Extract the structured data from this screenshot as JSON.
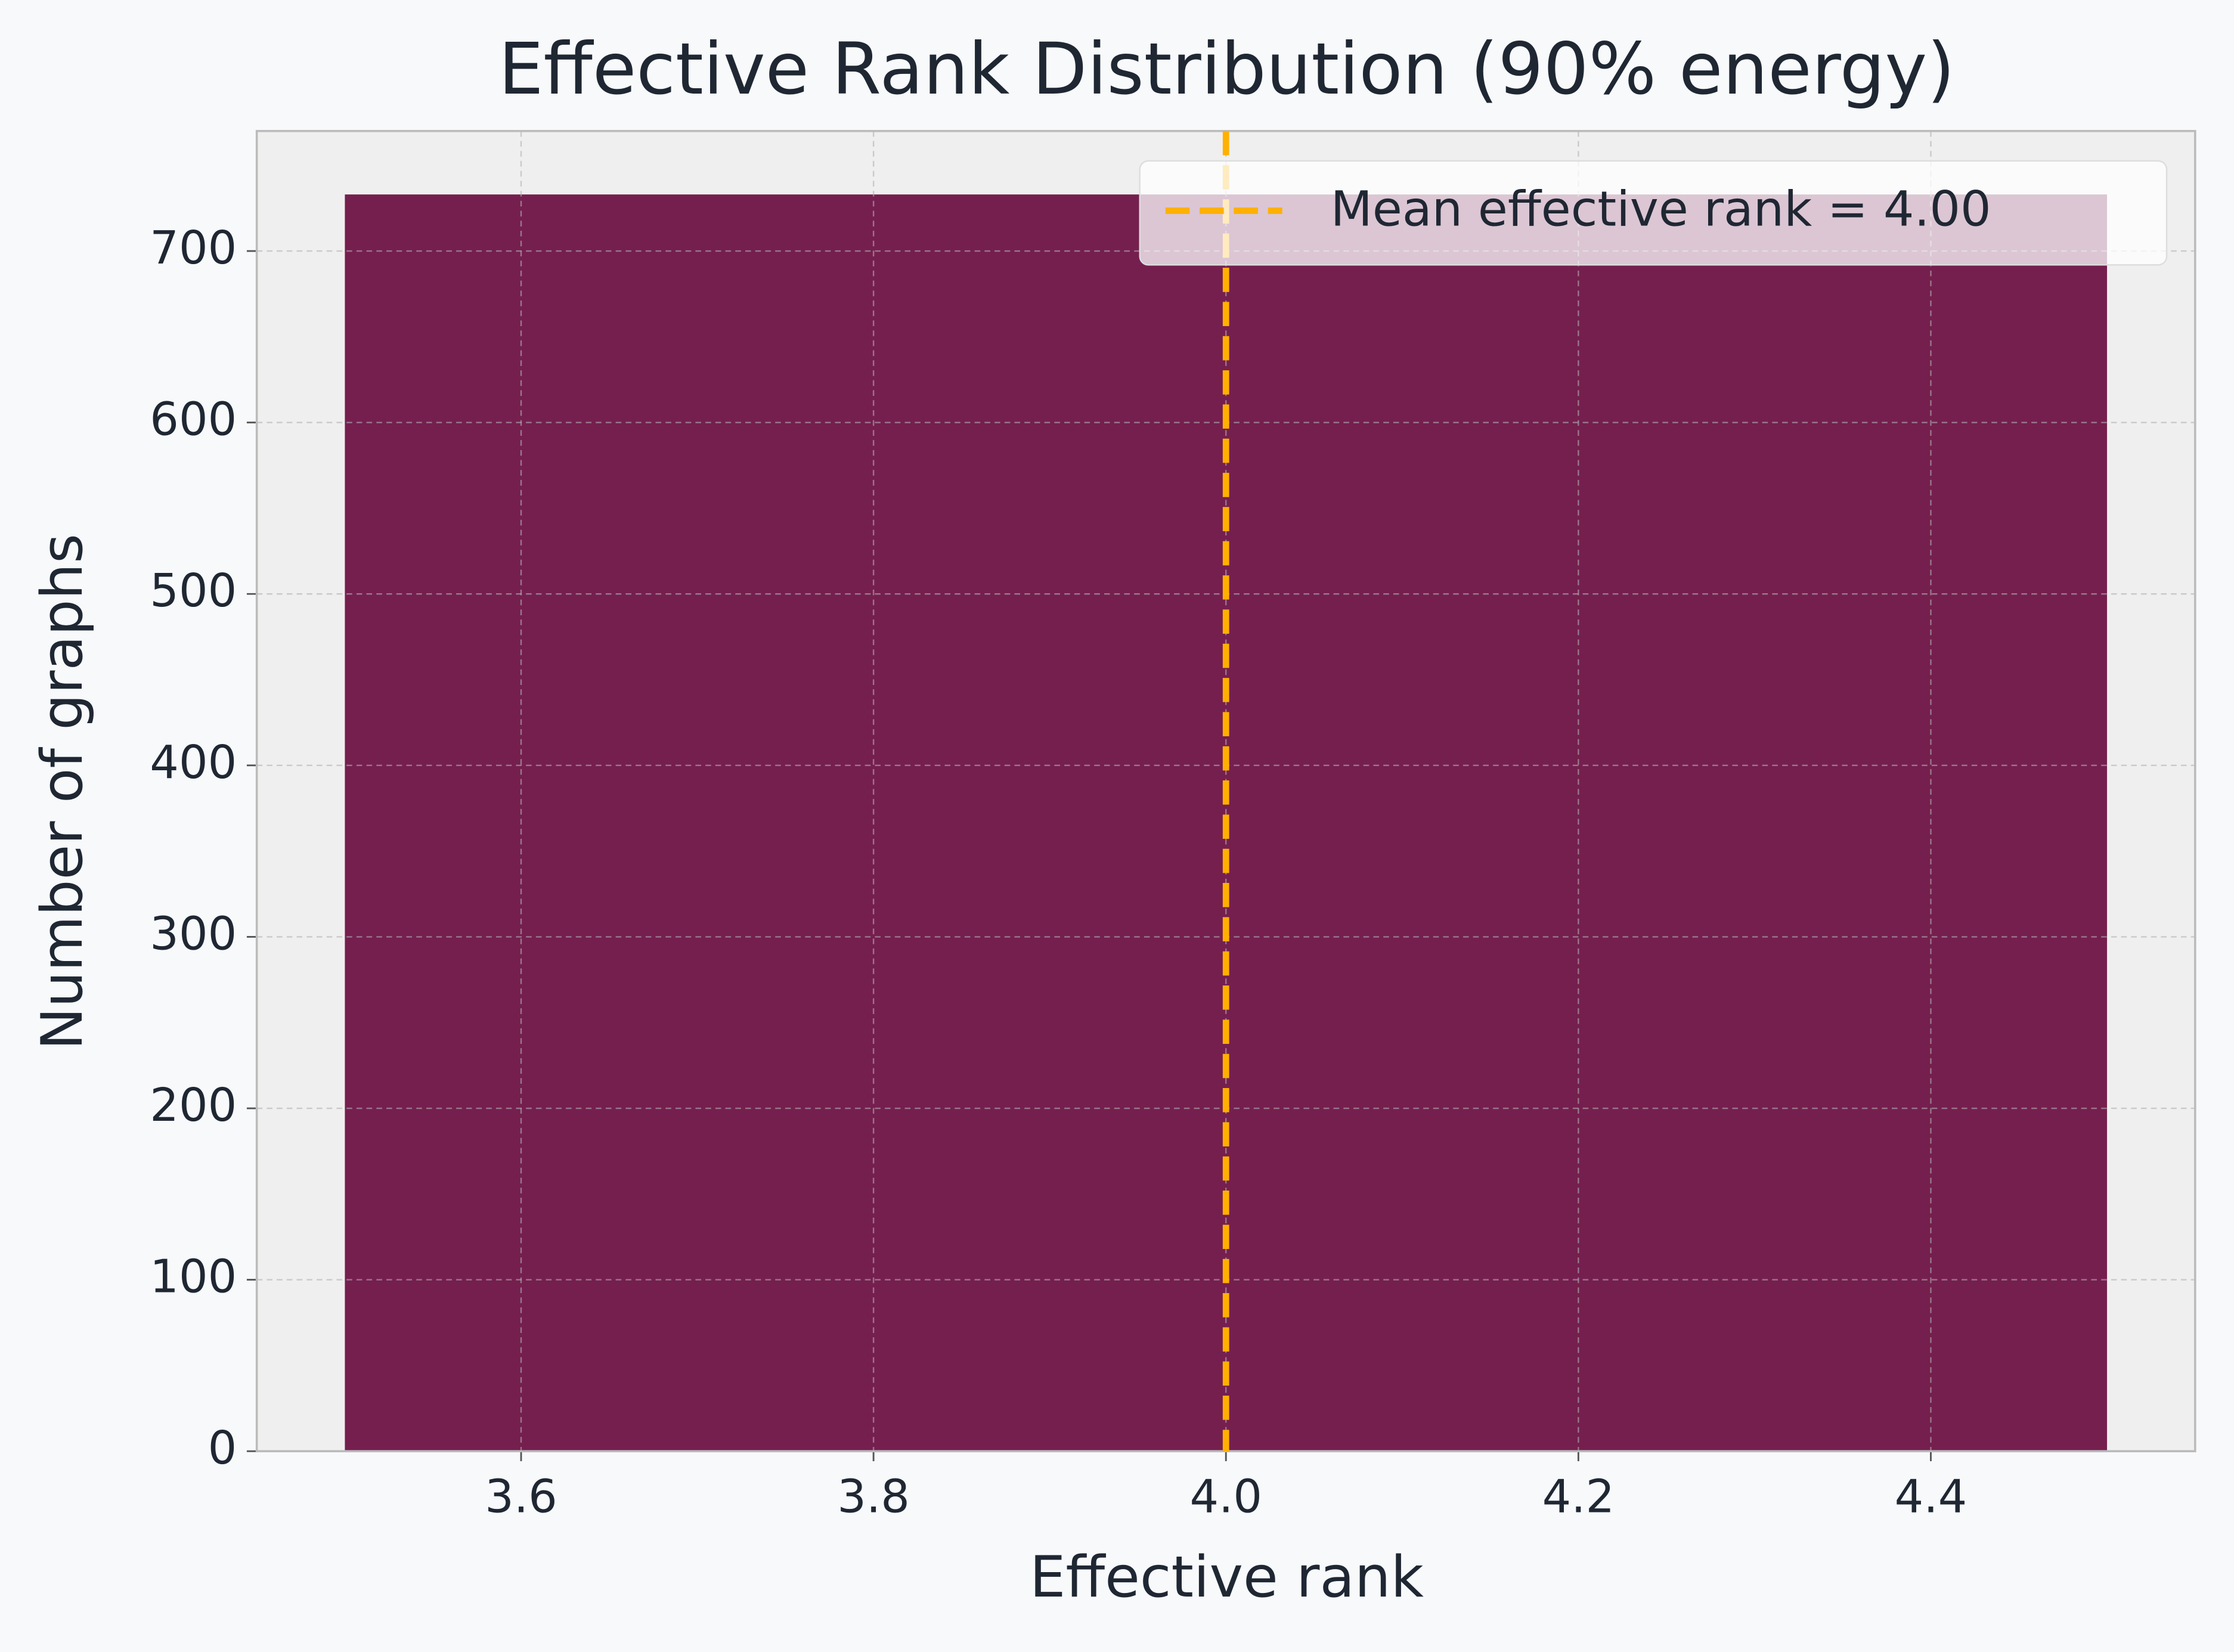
{
  "chart_data": {
    "type": "histogram",
    "title": "Effective Rank Distribution (90% energy)",
    "x_label": "Effective rank",
    "y_label": "Number of graphs",
    "bins": [
      3.5,
      4.5
    ],
    "values": [
      733
    ],
    "color": "#751f4f",
    "xlim": [
      3.45,
      4.55
    ],
    "ylim": [
      0,
      770
    ],
    "xticks": [
      3.6,
      3.8,
      {
        "value": 4,
        "label": "4.0"
      },
      4.2,
      4.4
    ],
    "yticks": [
      0,
      100,
      200,
      300,
      400,
      500,
      600,
      700
    ],
    "grid": true,
    "legend": "upper right",
    "mean_line": {
      "value": 4.0,
      "label": "Mean effective rank = 4.00",
      "color": "#ffb000"
    }
  }
}
